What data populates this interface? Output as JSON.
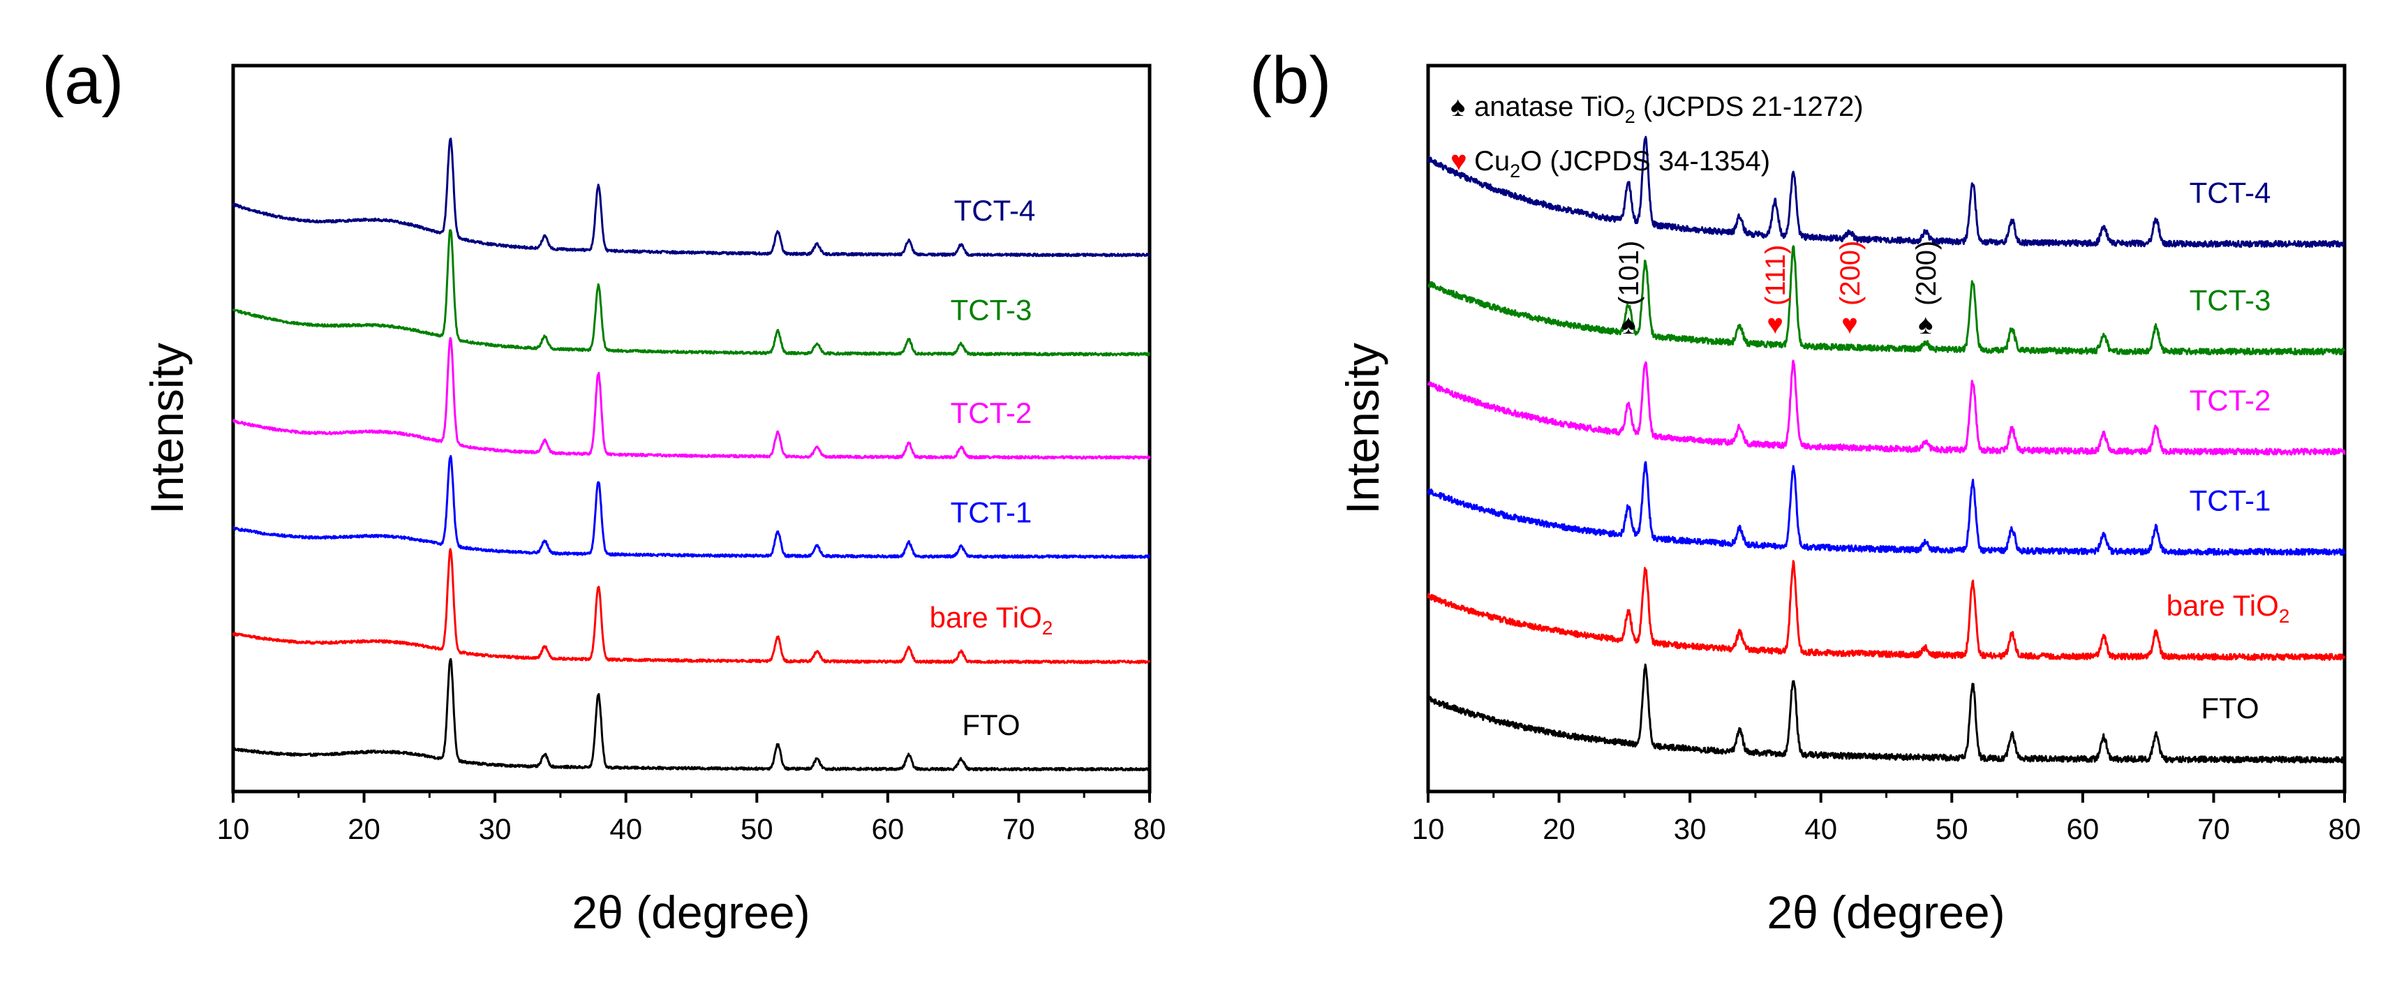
{
  "colors": {
    "FTO": "#000000",
    "bare": "#ff0000",
    "TCT-1": "#0000ff",
    "TCT-2": "#ff00ff",
    "TCT-3": "#008000",
    "TCT-4": "#00007f",
    "anatase_marker": "#000000",
    "cu2o_marker": "#ff0000"
  },
  "chart_data": [
    {
      "type": "line",
      "panel_label": "(a)",
      "xlabel": "2θ (degree)",
      "ylabel": "Intensity",
      "xlim": [
        10,
        80
      ],
      "xticks": [
        10,
        20,
        30,
        40,
        50,
        60,
        70,
        80
      ],
      "yticks": [],
      "baseline_noise": 0.06,
      "series": [
        {
          "name": "FTO",
          "label": "FTO",
          "color_key": "FTO",
          "offset": 0.5,
          "start": 0.55,
          "decay_to": 0.05,
          "hump": 0.25,
          "peaks": [
            [
              26.6,
              2.5
            ],
            [
              33.8,
              0.3
            ],
            [
              37.9,
              1.8
            ],
            [
              51.6,
              0.6
            ],
            [
              54.6,
              0.25
            ],
            [
              61.6,
              0.35
            ],
            [
              65.6,
              0.25
            ]
          ]
        },
        {
          "name": "bare TiO2",
          "label": "bare TiO",
          "sub": "2",
          "color_key": "bare",
          "offset": 3.15,
          "start": 0.75,
          "decay_to": 0.05,
          "hump": 0.25,
          "peaks": [
            [
              26.6,
              2.5
            ],
            [
              33.8,
              0.3
            ],
            [
              37.9,
              1.8
            ],
            [
              51.6,
              0.6
            ],
            [
              54.6,
              0.25
            ],
            [
              61.6,
              0.35
            ],
            [
              65.6,
              0.25
            ]
          ]
        },
        {
          "name": "TCT-1",
          "label": "TCT-1",
          "color_key": "TCT-1",
          "offset": 5.75,
          "start": 0.75,
          "decay_to": 0.05,
          "hump": 0.25,
          "peaks": [
            [
              26.6,
              2.2
            ],
            [
              33.8,
              0.3
            ],
            [
              37.9,
              1.8
            ],
            [
              51.6,
              0.6
            ],
            [
              54.6,
              0.25
            ],
            [
              61.6,
              0.35
            ],
            [
              65.6,
              0.25
            ]
          ]
        },
        {
          "name": "TCT-2",
          "label": "TCT-2",
          "color_key": "TCT-2",
          "offset": 8.2,
          "start": 0.95,
          "decay_to": 0.05,
          "hump": 0.3,
          "peaks": [
            [
              26.6,
              2.6
            ],
            [
              33.8,
              0.3
            ],
            [
              37.9,
              2.0
            ],
            [
              51.6,
              0.6
            ],
            [
              54.6,
              0.25
            ],
            [
              61.6,
              0.35
            ],
            [
              65.6,
              0.25
            ]
          ]
        },
        {
          "name": "TCT-3",
          "label": "TCT-3",
          "color_key": "TCT-3",
          "offset": 10.75,
          "start": 1.15,
          "decay_to": 0.05,
          "hump": 0.3,
          "peaks": [
            [
              26.6,
              2.7
            ],
            [
              33.8,
              0.3
            ],
            [
              37.9,
              1.6
            ],
            [
              51.6,
              0.55
            ],
            [
              54.6,
              0.25
            ],
            [
              61.6,
              0.35
            ],
            [
              65.6,
              0.25
            ]
          ]
        },
        {
          "name": "TCT-4",
          "label": "TCT-4",
          "color_key": "TCT-4",
          "offset": 13.2,
          "start": 1.3,
          "decay_to": 0.05,
          "hump": 0.4,
          "peaks": [
            [
              26.6,
              2.4
            ],
            [
              33.8,
              0.3
            ],
            [
              37.9,
              1.6
            ],
            [
              51.6,
              0.55
            ],
            [
              54.6,
              0.25
            ],
            [
              61.6,
              0.35
            ],
            [
              65.6,
              0.25
            ]
          ]
        }
      ]
    },
    {
      "type": "line",
      "panel_label": "(b)",
      "xlabel": "2θ (degree)",
      "ylabel": "Intensity",
      "xlim": [
        10,
        80
      ],
      "xticks": [
        10,
        20,
        30,
        40,
        50,
        60,
        70,
        80
      ],
      "yticks": [],
      "baseline_noise": 0.12,
      "legend": [
        {
          "symbol": "♠",
          "color_key": "anatase_marker",
          "pre": "anatase TiO",
          "sub": "2",
          "post": " (JCPDS 21-1272)"
        },
        {
          "symbol": "♥",
          "color_key": "cu2o_marker",
          "pre": "Cu",
          "sub": "2",
          "post": "O (JCPDS 34-1354)"
        }
      ],
      "annotations": [
        {
          "symbol": "♠",
          "text": "(101)",
          "x": 25.3,
          "color_key": "anatase_marker"
        },
        {
          "symbol": "♥",
          "text": "(111)",
          "x": 36.5,
          "color_key": "cu2o_marker"
        },
        {
          "symbol": "♥",
          "text": "(200)",
          "x": 42.2,
          "color_key": "cu2o_marker"
        },
        {
          "symbol": "♠",
          "text": "(200)",
          "x": 48.0,
          "color_key": "anatase_marker"
        }
      ],
      "series": [
        {
          "name": "FTO",
          "label": "FTO",
          "color_key": "FTO",
          "offset": 0.6,
          "start": 1.3,
          "decay_to": 0.05,
          "peaks": [
            [
              26.6,
              1.6
            ],
            [
              33.8,
              0.45
            ],
            [
              37.9,
              1.55
            ],
            [
              51.6,
              1.5
            ],
            [
              54.6,
              0.5
            ],
            [
              61.6,
              0.45
            ],
            [
              65.6,
              0.5
            ]
          ]
        },
        {
          "name": "bare TiO2",
          "label": "bare TiO",
          "sub": "2",
          "color_key": "bare",
          "offset": 2.7,
          "start": 1.3,
          "decay_to": 0.05,
          "peaks": [
            [
              25.3,
              0.6
            ],
            [
              26.6,
              1.5
            ],
            [
              33.8,
              0.35
            ],
            [
              37.9,
              1.8
            ],
            [
              48.0,
              0.15
            ],
            [
              51.6,
              1.5
            ],
            [
              54.6,
              0.45
            ],
            [
              61.6,
              0.4
            ],
            [
              65.6,
              0.5
            ]
          ]
        },
        {
          "name": "TCT-1",
          "label": "TCT-1",
          "color_key": "TCT-1",
          "offset": 4.85,
          "start": 1.3,
          "decay_to": 0.05,
          "peaks": [
            [
              25.3,
              0.6
            ],
            [
              26.6,
              1.5
            ],
            [
              33.8,
              0.35
            ],
            [
              37.9,
              1.6
            ],
            [
              48.0,
              0.15
            ],
            [
              51.6,
              1.4
            ],
            [
              54.6,
              0.45
            ],
            [
              61.6,
              0.35
            ],
            [
              65.6,
              0.5
            ]
          ]
        },
        {
          "name": "TCT-2",
          "label": "TCT-2",
          "color_key": "TCT-2",
          "offset": 6.9,
          "start": 1.45,
          "decay_to": 0.05,
          "peaks": [
            [
              25.3,
              0.6
            ],
            [
              26.6,
              1.5
            ],
            [
              33.8,
              0.35
            ],
            [
              37.9,
              1.7
            ],
            [
              48.0,
              0.15
            ],
            [
              51.6,
              1.4
            ],
            [
              54.6,
              0.45
            ],
            [
              61.6,
              0.35
            ],
            [
              65.6,
              0.5
            ]
          ]
        },
        {
          "name": "TCT-3",
          "label": "TCT-3",
          "color_key": "TCT-3",
          "offset": 8.95,
          "start": 1.45,
          "decay_to": 0.05,
          "peaks": [
            [
              25.3,
              0.6
            ],
            [
              26.6,
              1.5
            ],
            [
              33.8,
              0.35
            ],
            [
              37.9,
              2.0
            ],
            [
              48.0,
              0.15
            ],
            [
              51.6,
              1.4
            ],
            [
              54.6,
              0.45
            ],
            [
              61.6,
              0.35
            ],
            [
              65.6,
              0.5
            ]
          ]
        },
        {
          "name": "TCT-4",
          "label": "TCT-4",
          "color_key": "TCT-4",
          "offset": 11.15,
          "start": 1.8,
          "decay_to": 0.05,
          "peaks": [
            [
              25.3,
              0.8
            ],
            [
              26.6,
              1.75
            ],
            [
              33.8,
              0.35
            ],
            [
              36.5,
              0.7
            ],
            [
              37.9,
              1.3
            ],
            [
              42.2,
              0.15
            ],
            [
              48.0,
              0.2
            ],
            [
              51.6,
              1.2
            ],
            [
              54.6,
              0.45
            ],
            [
              61.6,
              0.35
            ],
            [
              65.6,
              0.5
            ]
          ]
        }
      ]
    }
  ]
}
